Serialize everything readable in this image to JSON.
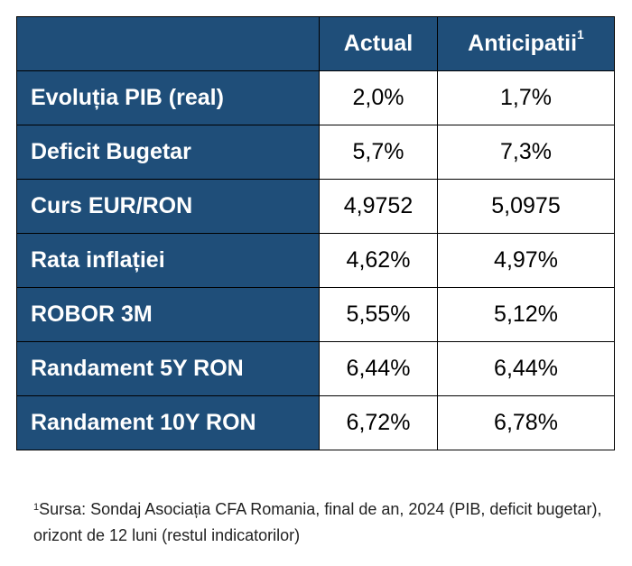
{
  "table": {
    "header": {
      "col_actual": "Actual",
      "col_anticipatii": "Anticipatii",
      "footnote_marker": "1"
    },
    "rows": [
      {
        "label": "Evoluția PIB (real)",
        "actual": "2,0%",
        "anticipatii": "1,7%"
      },
      {
        "label": "Deficit Bugetar",
        "actual": "5,7%",
        "anticipatii": "7,3%"
      },
      {
        "label": "Curs EUR/RON",
        "actual": "4,9752",
        "anticipatii": "5,0975"
      },
      {
        "label": "Rata inflației",
        "actual": "4,62%",
        "anticipatii": "4,97%"
      },
      {
        "label": "ROBOR 3M",
        "actual": "5,55%",
        "anticipatii": "5,12%"
      },
      {
        "label": "Randament 5Y RON",
        "actual": "6,44%",
        "anticipatii": "6,44%"
      },
      {
        "label": "Randament 10Y RON",
        "actual": "6,72%",
        "anticipatii": "6,78%"
      }
    ]
  },
  "footnote": {
    "marker": "1",
    "text": "Sursa: Sondaj Asociația CFA Romania, final de an, 2024 (PIB, deficit bugetar), orizont de 12 luni (restul indicatorilor)"
  },
  "colors": {
    "header_bg": "#1f4e79",
    "header_text": "#ffffff"
  }
}
